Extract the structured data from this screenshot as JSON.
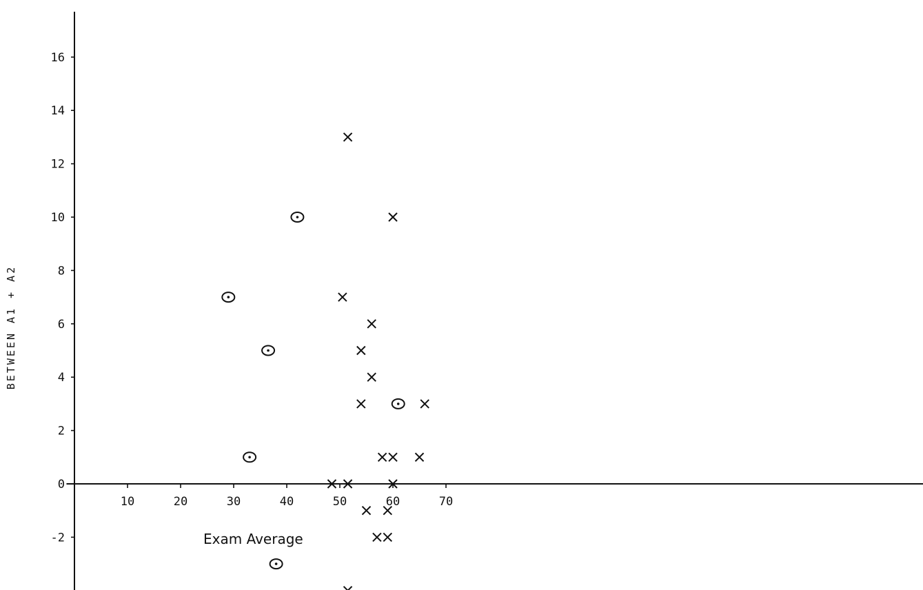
{
  "chart_data": {
    "type": "scatter",
    "xlabel": "Exam Average",
    "ylabel": "BETWEEN A1 + A2",
    "xlim": [
      -1.5,
      78
    ],
    "ylim": [
      -4,
      18
    ],
    "grid": false,
    "x_ticks": [
      {
        "value": 10,
        "label": "10"
      },
      {
        "value": 20,
        "label": "20"
      },
      {
        "value": 30,
        "label": "30"
      },
      {
        "value": 40,
        "label": "40"
      },
      {
        "value": 50,
        "label": "50"
      },
      {
        "value": 60,
        "label": "60"
      },
      {
        "value": 70,
        "label": "70"
      }
    ],
    "y_ticks": [
      {
        "value": 16,
        "label": "16"
      },
      {
        "value": 14,
        "label": "14"
      },
      {
        "value": 12,
        "label": "12"
      },
      {
        "value": 10,
        "label": "10"
      },
      {
        "value": 8,
        "label": "8"
      },
      {
        "value": 6,
        "label": "6"
      },
      {
        "value": 4,
        "label": "4"
      },
      {
        "value": 2,
        "label": "2"
      },
      {
        "value": 0,
        "label": "0"
      },
      {
        "value": -2,
        "label": "-2"
      }
    ],
    "series": [
      {
        "marker": "x",
        "points": [
          [
            51.5,
            13
          ],
          [
            60,
            10
          ],
          [
            50.5,
            7
          ],
          [
            56,
            6
          ],
          [
            54,
            5
          ],
          [
            56,
            4
          ],
          [
            54,
            3
          ],
          [
            66,
            3
          ],
          [
            58,
            1
          ],
          [
            60,
            1
          ],
          [
            65,
            1
          ],
          [
            48.5,
            0
          ],
          [
            51.5,
            0
          ],
          [
            60,
            0
          ],
          [
            55,
            -1
          ],
          [
            59,
            -1
          ],
          [
            57,
            -2
          ],
          [
            59,
            -2
          ],
          [
            51.5,
            -4
          ]
        ]
      },
      {
        "marker": "o",
        "points": [
          [
            42,
            10
          ],
          [
            29,
            7
          ],
          [
            36.5,
            5
          ],
          [
            61,
            3
          ],
          [
            33,
            1
          ],
          [
            38,
            -3
          ]
        ]
      }
    ]
  }
}
